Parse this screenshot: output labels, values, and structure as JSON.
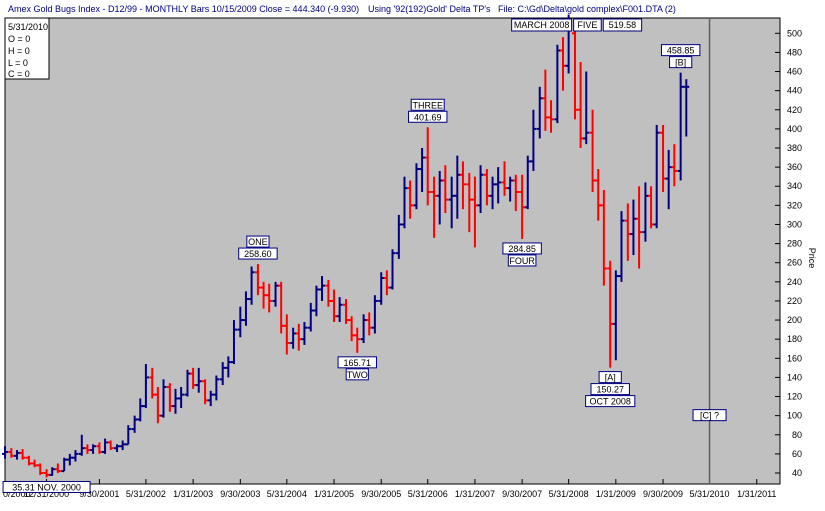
{
  "header": {
    "title": "Amex Gold Bugs Index - D12/99  - MONTHLY Bars  10/15/2009 Close = 444.340 (-9.930)",
    "using": "Using '92(192)Gold' Delta TP's",
    "file": "File: C:\\Gd\\Delta\\gold complex\\F001.DTA (2)"
  },
  "ohlc_box": {
    "date": "5/31/2010",
    "o": "O = 0",
    "h": "H = 0",
    "l": "L = 0",
    "c": "C = 0"
  },
  "colors": {
    "plot_bg": "#c0c0c0",
    "up_bar": "#000080",
    "down_bar": "#ff0000",
    "frame": "#000000",
    "label_border": "#000080",
    "today_line": "#606060"
  },
  "chart_data": {
    "type": "ohlc_bar",
    "title": "Amex Gold Bugs Index",
    "ylabel": "Price",
    "ylim": [
      20,
      510
    ],
    "yticks": [
      40,
      60,
      80,
      100,
      120,
      140,
      160,
      180,
      200,
      220,
      240,
      260,
      280,
      300,
      320,
      340,
      360,
      380,
      400,
      420,
      440,
      460,
      480,
      500
    ],
    "xticks": [
      {
        "label": "0/2000",
        "month": 2000.33
      },
      {
        "label": "12/31/2000",
        "month": 2000.92
      },
      {
        "label": "9/30/2001",
        "month": 2001.67
      },
      {
        "label": "5/31/2002",
        "month": 2002.33
      },
      {
        "label": "1/31/2003",
        "month": 2003.0
      },
      {
        "label": "9/30/2003",
        "month": 2003.67
      },
      {
        "label": "5/31/2004",
        "month": 2004.33
      },
      {
        "label": "1/31/2005",
        "month": 2005.0
      },
      {
        "label": "9/30/2005",
        "month": 2005.67
      },
      {
        "label": "5/31/2006",
        "month": 2006.33
      },
      {
        "label": "1/31/2007",
        "month": 2007.0
      },
      {
        "label": "9/30/2007",
        "month": 2007.67
      },
      {
        "label": "5/31/2008",
        "month": 2008.33
      },
      {
        "label": "1/31/2009",
        "month": 2009.0
      },
      {
        "label": "9/30/2009",
        "month": 2009.67
      },
      {
        "label": "5/31/2010",
        "month": 2010.33
      },
      {
        "label": "1/31/2011",
        "month": 2011.0
      }
    ],
    "xlim": [
      2000.33,
      2011.33
    ],
    "current_date_marker": 2010.33,
    "bars": [
      {
        "t": 2000.33,
        "o": 60,
        "h": 68,
        "l": 55,
        "c": 62
      },
      {
        "t": 2000.42,
        "o": 62,
        "h": 66,
        "l": 56,
        "c": 58
      },
      {
        "t": 2000.5,
        "o": 58,
        "h": 64,
        "l": 54,
        "c": 61
      },
      {
        "t": 2000.58,
        "o": 61,
        "h": 65,
        "l": 54,
        "c": 56
      },
      {
        "t": 2000.67,
        "o": 56,
        "h": 58,
        "l": 48,
        "c": 50
      },
      {
        "t": 2000.75,
        "o": 50,
        "h": 54,
        "l": 46,
        "c": 48
      },
      {
        "t": 2000.83,
        "o": 48,
        "h": 50,
        "l": 38,
        "c": 40
      },
      {
        "t": 2000.92,
        "o": 40,
        "h": 44,
        "l": 35.31,
        "c": 38
      },
      {
        "t": 2001.0,
        "o": 38,
        "h": 46,
        "l": 37,
        "c": 44
      },
      {
        "t": 2001.08,
        "o": 44,
        "h": 50,
        "l": 40,
        "c": 42
      },
      {
        "t": 2001.17,
        "o": 42,
        "h": 56,
        "l": 42,
        "c": 54
      },
      {
        "t": 2001.25,
        "o": 54,
        "h": 60,
        "l": 48,
        "c": 56
      },
      {
        "t": 2001.33,
        "o": 56,
        "h": 64,
        "l": 52,
        "c": 60
      },
      {
        "t": 2001.42,
        "o": 60,
        "h": 80,
        "l": 58,
        "c": 66
      },
      {
        "t": 2001.5,
        "o": 66,
        "h": 70,
        "l": 60,
        "c": 64
      },
      {
        "t": 2001.58,
        "o": 64,
        "h": 70,
        "l": 60,
        "c": 68
      },
      {
        "t": 2001.67,
        "o": 68,
        "h": 72,
        "l": 60,
        "c": 62
      },
      {
        "t": 2001.75,
        "o": 62,
        "h": 76,
        "l": 60,
        "c": 72
      },
      {
        "t": 2001.83,
        "o": 72,
        "h": 74,
        "l": 64,
        "c": 66
      },
      {
        "t": 2001.92,
        "o": 66,
        "h": 70,
        "l": 62,
        "c": 68
      },
      {
        "t": 2002.0,
        "o": 68,
        "h": 74,
        "l": 64,
        "c": 70
      },
      {
        "t": 2002.08,
        "o": 70,
        "h": 90,
        "l": 70,
        "c": 86
      },
      {
        "t": 2002.17,
        "o": 86,
        "h": 100,
        "l": 82,
        "c": 96
      },
      {
        "t": 2002.25,
        "o": 96,
        "h": 118,
        "l": 94,
        "c": 110
      },
      {
        "t": 2002.33,
        "o": 110,
        "h": 154,
        "l": 108,
        "c": 140
      },
      {
        "t": 2002.42,
        "o": 140,
        "h": 150,
        "l": 118,
        "c": 122
      },
      {
        "t": 2002.5,
        "o": 122,
        "h": 130,
        "l": 92,
        "c": 100
      },
      {
        "t": 2002.58,
        "o": 100,
        "h": 138,
        "l": 98,
        "c": 130
      },
      {
        "t": 2002.67,
        "o": 130,
        "h": 134,
        "l": 104,
        "c": 110
      },
      {
        "t": 2002.75,
        "o": 110,
        "h": 128,
        "l": 102,
        "c": 118
      },
      {
        "t": 2002.83,
        "o": 118,
        "h": 130,
        "l": 108,
        "c": 122
      },
      {
        "t": 2002.92,
        "o": 122,
        "h": 148,
        "l": 120,
        "c": 144
      },
      {
        "t": 2003.0,
        "o": 144,
        "h": 150,
        "l": 128,
        "c": 132
      },
      {
        "t": 2003.08,
        "o": 132,
        "h": 150,
        "l": 124,
        "c": 136
      },
      {
        "t": 2003.17,
        "o": 136,
        "h": 138,
        "l": 112,
        "c": 116
      },
      {
        "t": 2003.25,
        "o": 116,
        "h": 126,
        "l": 110,
        "c": 122
      },
      {
        "t": 2003.33,
        "o": 122,
        "h": 142,
        "l": 116,
        "c": 138
      },
      {
        "t": 2003.42,
        "o": 138,
        "h": 156,
        "l": 132,
        "c": 150
      },
      {
        "t": 2003.5,
        "o": 150,
        "h": 162,
        "l": 140,
        "c": 156
      },
      {
        "t": 2003.58,
        "o": 156,
        "h": 200,
        "l": 154,
        "c": 190
      },
      {
        "t": 2003.67,
        "o": 190,
        "h": 214,
        "l": 182,
        "c": 200
      },
      {
        "t": 2003.75,
        "o": 200,
        "h": 230,
        "l": 194,
        "c": 222
      },
      {
        "t": 2003.83,
        "o": 222,
        "h": 256,
        "l": 216,
        "c": 250
      },
      {
        "t": 2003.92,
        "o": 250,
        "h": 258.6,
        "l": 226,
        "c": 234
      },
      {
        "t": 2004.0,
        "o": 234,
        "h": 240,
        "l": 212,
        "c": 226
      },
      {
        "t": 2004.08,
        "o": 226,
        "h": 238,
        "l": 208,
        "c": 220
      },
      {
        "t": 2004.17,
        "o": 220,
        "h": 240,
        "l": 214,
        "c": 236
      },
      {
        "t": 2004.25,
        "o": 236,
        "h": 240,
        "l": 186,
        "c": 194
      },
      {
        "t": 2004.33,
        "o": 194,
        "h": 206,
        "l": 164,
        "c": 176
      },
      {
        "t": 2004.42,
        "o": 176,
        "h": 192,
        "l": 170,
        "c": 186
      },
      {
        "t": 2004.5,
        "o": 186,
        "h": 196,
        "l": 168,
        "c": 180
      },
      {
        "t": 2004.58,
        "o": 180,
        "h": 198,
        "l": 174,
        "c": 192
      },
      {
        "t": 2004.67,
        "o": 192,
        "h": 218,
        "l": 188,
        "c": 210
      },
      {
        "t": 2004.75,
        "o": 210,
        "h": 236,
        "l": 204,
        "c": 232
      },
      {
        "t": 2004.83,
        "o": 232,
        "h": 246,
        "l": 220,
        "c": 236
      },
      {
        "t": 2004.92,
        "o": 236,
        "h": 242,
        "l": 214,
        "c": 220
      },
      {
        "t": 2005.0,
        "o": 220,
        "h": 232,
        "l": 198,
        "c": 204
      },
      {
        "t": 2005.08,
        "o": 204,
        "h": 224,
        "l": 198,
        "c": 216
      },
      {
        "t": 2005.17,
        "o": 216,
        "h": 222,
        "l": 196,
        "c": 200
      },
      {
        "t": 2005.25,
        "o": 200,
        "h": 204,
        "l": 178,
        "c": 184
      },
      {
        "t": 2005.33,
        "o": 184,
        "h": 192,
        "l": 165.71,
        "c": 180
      },
      {
        "t": 2005.42,
        "o": 180,
        "h": 206,
        "l": 176,
        "c": 200
      },
      {
        "t": 2005.5,
        "o": 200,
        "h": 208,
        "l": 184,
        "c": 192
      },
      {
        "t": 2005.58,
        "o": 192,
        "h": 226,
        "l": 186,
        "c": 220
      },
      {
        "t": 2005.67,
        "o": 220,
        "h": 250,
        "l": 216,
        "c": 244
      },
      {
        "t": 2005.75,
        "o": 244,
        "h": 252,
        "l": 226,
        "c": 234
      },
      {
        "t": 2005.83,
        "o": 234,
        "h": 274,
        "l": 232,
        "c": 270
      },
      {
        "t": 2005.92,
        "o": 270,
        "h": 310,
        "l": 264,
        "c": 300
      },
      {
        "t": 2006.0,
        "o": 300,
        "h": 350,
        "l": 296,
        "c": 338
      },
      {
        "t": 2006.08,
        "o": 338,
        "h": 346,
        "l": 306,
        "c": 320
      },
      {
        "t": 2006.17,
        "o": 320,
        "h": 364,
        "l": 316,
        "c": 358
      },
      {
        "t": 2006.25,
        "o": 358,
        "h": 380,
        "l": 334,
        "c": 370
      },
      {
        "t": 2006.33,
        "o": 370,
        "h": 401.69,
        "l": 320,
        "c": 334
      },
      {
        "t": 2006.42,
        "o": 334,
        "h": 350,
        "l": 286,
        "c": 330
      },
      {
        "t": 2006.5,
        "o": 330,
        "h": 356,
        "l": 300,
        "c": 346
      },
      {
        "t": 2006.58,
        "o": 346,
        "h": 362,
        "l": 312,
        "c": 326
      },
      {
        "t": 2006.67,
        "o": 326,
        "h": 350,
        "l": 296,
        "c": 330
      },
      {
        "t": 2006.75,
        "o": 330,
        "h": 372,
        "l": 306,
        "c": 352
      },
      {
        "t": 2006.83,
        "o": 352,
        "h": 366,
        "l": 316,
        "c": 342
      },
      {
        "t": 2006.92,
        "o": 342,
        "h": 354,
        "l": 292,
        "c": 326
      },
      {
        "t": 2007.0,
        "o": 326,
        "h": 350,
        "l": 276,
        "c": 320
      },
      {
        "t": 2007.08,
        "o": 320,
        "h": 362,
        "l": 312,
        "c": 352
      },
      {
        "t": 2007.17,
        "o": 352,
        "h": 358,
        "l": 320,
        "c": 330
      },
      {
        "t": 2007.25,
        "o": 330,
        "h": 350,
        "l": 316,
        "c": 342
      },
      {
        "t": 2007.33,
        "o": 342,
        "h": 360,
        "l": 322,
        "c": 344
      },
      {
        "t": 2007.42,
        "o": 344,
        "h": 366,
        "l": 330,
        "c": 338
      },
      {
        "t": 2007.5,
        "o": 338,
        "h": 350,
        "l": 324,
        "c": 346
      },
      {
        "t": 2007.58,
        "o": 346,
        "h": 352,
        "l": 314,
        "c": 334
      },
      {
        "t": 2007.67,
        "o": 334,
        "h": 352,
        "l": 284.85,
        "c": 318
      },
      {
        "t": 2007.75,
        "o": 318,
        "h": 372,
        "l": 316,
        "c": 366
      },
      {
        "t": 2007.83,
        "o": 366,
        "h": 420,
        "l": 356,
        "c": 400
      },
      {
        "t": 2007.92,
        "o": 400,
        "h": 444,
        "l": 390,
        "c": 432
      },
      {
        "t": 2008.0,
        "o": 432,
        "h": 462,
        "l": 398,
        "c": 412
      },
      {
        "t": 2008.08,
        "o": 412,
        "h": 430,
        "l": 396,
        "c": 410
      },
      {
        "t": 2008.17,
        "o": 410,
        "h": 488,
        "l": 406,
        "c": 482
      },
      {
        "t": 2008.25,
        "o": 482,
        "h": 496,
        "l": 440,
        "c": 466
      },
      {
        "t": 2008.33,
        "o": 466,
        "h": 519.58,
        "l": 458,
        "c": 510
      },
      {
        "t": 2008.42,
        "o": 500,
        "h": 504,
        "l": 410,
        "c": 420
      },
      {
        "t": 2008.5,
        "o": 420,
        "h": 470,
        "l": 380,
        "c": 390
      },
      {
        "t": 2008.58,
        "o": 390,
        "h": 460,
        "l": 384,
        "c": 396
      },
      {
        "t": 2008.67,
        "o": 396,
        "h": 420,
        "l": 334,
        "c": 346
      },
      {
        "t": 2008.75,
        "o": 346,
        "h": 358,
        "l": 304,
        "c": 320
      },
      {
        "t": 2008.83,
        "o": 320,
        "h": 336,
        "l": 236,
        "c": 254
      },
      {
        "t": 2008.92,
        "o": 254,
        "h": 262,
        "l": 150.27,
        "c": 196
      },
      {
        "t": 2009.0,
        "o": 196,
        "h": 252,
        "l": 158,
        "c": 246
      },
      {
        "t": 2009.08,
        "o": 246,
        "h": 314,
        "l": 240,
        "c": 304
      },
      {
        "t": 2009.17,
        "o": 304,
        "h": 322,
        "l": 262,
        "c": 290
      },
      {
        "t": 2009.25,
        "o": 290,
        "h": 326,
        "l": 268,
        "c": 306
      },
      {
        "t": 2009.33,
        "o": 306,
        "h": 340,
        "l": 254,
        "c": 292
      },
      {
        "t": 2009.42,
        "o": 292,
        "h": 344,
        "l": 282,
        "c": 330
      },
      {
        "t": 2009.5,
        "o": 330,
        "h": 340,
        "l": 296,
        "c": 300
      },
      {
        "t": 2009.58,
        "o": 300,
        "h": 404,
        "l": 296,
        "c": 396
      },
      {
        "t": 2009.67,
        "o": 396,
        "h": 404,
        "l": 334,
        "c": 348
      },
      {
        "t": 2009.75,
        "o": 348,
        "h": 378,
        "l": 316,
        "c": 360
      },
      {
        "t": 2009.83,
        "o": 360,
        "h": 384,
        "l": 340,
        "c": 356
      },
      {
        "t": 2009.92,
        "o": 356,
        "h": 458.85,
        "l": 346,
        "c": 444
      },
      {
        "t": 2010.0,
        "o": 444,
        "h": 452,
        "l": 392,
        "c": 444
      }
    ],
    "annotations": [
      {
        "lines": [
          "35.31 NOV. 2000"
        ],
        "t": 2000.92,
        "price": 35.31,
        "pos": "below"
      },
      {
        "lines": [
          "ONE",
          "258.60"
        ],
        "t": 2003.92,
        "price": 258.6,
        "pos": "above"
      },
      {
        "lines": [
          "165.71",
          "TWO"
        ],
        "t": 2005.33,
        "price": 165.71,
        "pos": "below"
      },
      {
        "lines": [
          "THREE",
          "401.69"
        ],
        "t": 2006.33,
        "price": 401.69,
        "pos": "above"
      },
      {
        "lines": [
          "284.85",
          "FOUR"
        ],
        "t": 2007.67,
        "price": 284.85,
        "pos": "below"
      },
      {
        "lines": [
          "MARCH 2008",
          "FIVE",
          "519.58"
        ],
        "t": 2008.33,
        "price": 519.58,
        "pos": "top-row"
      },
      {
        "lines": [
          "[A]",
          "150.27",
          "OCT 2008"
        ],
        "t": 2008.92,
        "price": 150.27,
        "pos": "below"
      },
      {
        "lines": [
          "458.85",
          "[B]"
        ],
        "t": 2009.92,
        "price": 458.85,
        "pos": "above"
      },
      {
        "lines": [
          "[C] ?"
        ],
        "t": 2010.33,
        "price": 100,
        "pos": "at"
      }
    ]
  }
}
